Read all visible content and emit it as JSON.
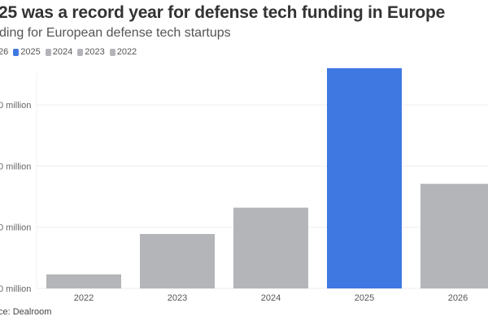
{
  "chart_data": {
    "type": "bar",
    "title": "25 was a record year for defense tech funding in Europe",
    "subtitle": "ding for European defense tech startups",
    "legend": [
      {
        "label": "26",
        "color": null
      },
      {
        "label": "2025",
        "color": "#3f78e0"
      },
      {
        "label": "2024",
        "color": "#b3b5b8"
      },
      {
        "label": "2023",
        "color": "#b3b5b8"
      },
      {
        "label": "2022",
        "color": "#b3b5b8"
      }
    ],
    "legend_position": "top-left",
    "categories": [
      "2022",
      "2023",
      "2024",
      "2025",
      "2026"
    ],
    "values": [
      0.23,
      0.89,
      1.32,
      3.6,
      1.71
    ],
    "colors": [
      "#b3b5b8",
      "#b3b5b8",
      "#b3b5b8",
      "#3f78e0",
      "#b3b5b8"
    ],
    "y_ticks": [
      0,
      1,
      2,
      3
    ],
    "y_tick_labels": [
      "0 million",
      "0 million",
      "0 million",
      "0 million"
    ],
    "grid": true,
    "source": "ce: Dealroom"
  }
}
